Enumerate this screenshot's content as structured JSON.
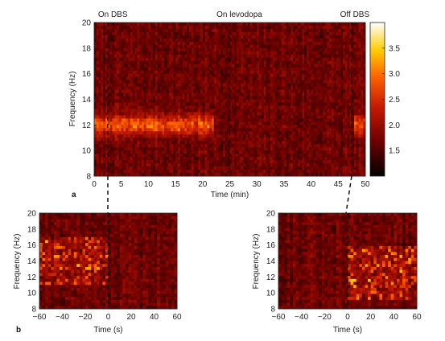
{
  "chart_data": [
    {
      "type": "heatmap",
      "panel_label": "a",
      "xlabel": "Time (min)",
      "ylabel": "Frequency (Hz)",
      "xlim": [
        0,
        50
      ],
      "ylim": [
        8,
        20
      ],
      "xticks": [
        0,
        5,
        10,
        15,
        20,
        25,
        30,
        35,
        40,
        45,
        50
      ],
      "yticks": [
        8,
        10,
        12,
        14,
        16,
        18,
        20
      ],
      "events": [
        {
          "x": 2.5,
          "label": "On DBS"
        },
        {
          "x": 25,
          "label": "On levodopa"
        },
        {
          "x": 47.5,
          "label": "Off DBS"
        }
      ],
      "colorbar": {
        "range": [
          1.0,
          4.0
        ],
        "ticks": [
          1.5,
          2.0,
          2.5,
          3.0,
          3.5
        ]
      },
      "features": [
        {
          "x_range": [
            0,
            22
          ],
          "freq_center": 12,
          "peak_value": 3.2
        },
        {
          "x_range": [
            48,
            50
          ],
          "freq_center": 12,
          "peak_value": 3.0
        }
      ]
    },
    {
      "type": "heatmap",
      "panel_label": "b",
      "xlabel": "Time (s)",
      "ylabel": "Frequency (Hz)",
      "xlim": [
        -60,
        60
      ],
      "ylim": [
        8,
        20
      ],
      "xticks": [
        -60,
        -40,
        -20,
        0,
        20,
        40,
        60
      ],
      "yticks": [
        8,
        10,
        12,
        14,
        16,
        18,
        20
      ],
      "event_x": 0,
      "features": [
        {
          "x_range": [
            -60,
            0
          ],
          "freq_range": [
            11,
            17
          ],
          "peak_value": 3.5
        }
      ]
    },
    {
      "type": "heatmap",
      "xlabel": "Time (s)",
      "ylabel": "Frequency (Hz)",
      "xlim": [
        -60,
        60
      ],
      "ylim": [
        8,
        20
      ],
      "xticks": [
        -60,
        -40,
        -20,
        0,
        20,
        40,
        60
      ],
      "yticks": [
        8,
        10,
        12,
        14,
        16,
        18,
        20
      ],
      "event_x": 0,
      "features": [
        {
          "x_range": [
            0,
            60
          ],
          "freq_range": [
            9,
            16
          ],
          "peak_value": 3.5
        }
      ]
    }
  ]
}
